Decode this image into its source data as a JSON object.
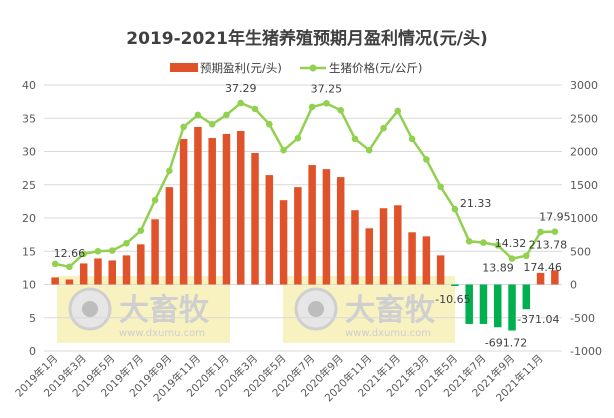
{
  "chart_data": {
    "type": "bar+line",
    "title": "2019-2021年生猪养殖预期月盈利情况(元/头)",
    "legend_position": "top",
    "grid": true,
    "x_tick_labels": [
      "2019年1月",
      "2019年3月",
      "2019年5月",
      "2019年7月",
      "2019年9月",
      "2019年11月",
      "2020年1月",
      "2020年3月",
      "2020年5月",
      "2020年7月",
      "2020年9月",
      "2020年11月",
      "2021年1月",
      "2021年3月",
      "2021年5月",
      "2021年7月",
      "2021年9月",
      "2021年11月"
    ],
    "left_axis": {
      "ylim": [
        0,
        40
      ],
      "ticks": [
        "0",
        "5",
        "10",
        "15",
        "20",
        "25",
        "30",
        "35",
        "40"
      ]
    },
    "right_axis": {
      "ylim": [
        -1000,
        3000
      ],
      "ticks": [
        "-1000",
        "-500",
        "0",
        "500",
        "1000",
        "1500",
        "2000",
        "2500",
        "3000"
      ]
    },
    "series": [
      {
        "name": "预期盈利(元/头)",
        "type": "bar",
        "axis": "right",
        "color": "#E0522A",
        "negative_color": "#00B050",
        "values": [
          106,
          75,
          317,
          392,
          362,
          438,
          604,
          981,
          1464,
          2188,
          2369,
          2203,
          2264,
          2309,
          1977,
          1645,
          1268,
          1464,
          1796,
          1735,
          1615,
          1117,
          845,
          1147,
          1192,
          785,
          724,
          438,
          -10.65,
          -593,
          -593,
          -643,
          -691.72,
          -371.04,
          174.46,
          213.78
        ]
      },
      {
        "name": "生猪价格(元/公斤)",
        "type": "line",
        "axis": "left",
        "color": "#92D050",
        "values": [
          13.1,
          12.66,
          14.6,
          15.0,
          15.1,
          16.2,
          18.1,
          22.7,
          27.1,
          33.7,
          35.5,
          34.1,
          35.5,
          37.29,
          36.4,
          34.1,
          30.2,
          32.0,
          36.7,
          37.25,
          36.2,
          31.9,
          30.2,
          33.5,
          36.1,
          31.9,
          28.8,
          24.7,
          21.33,
          16.5,
          16.3,
          15.9,
          13.89,
          14.32,
          17.9,
          17.95
        ]
      }
    ],
    "data_labels": [
      {
        "series": 1,
        "index": 1,
        "text": "12.66"
      },
      {
        "series": 1,
        "index": 13,
        "text": "37.29"
      },
      {
        "series": 1,
        "index": 19,
        "text": "37.25"
      },
      {
        "series": 1,
        "index": 28,
        "text": "21.33"
      },
      {
        "series": 1,
        "index": 32,
        "text": "13.89"
      },
      {
        "series": 1,
        "index": 33,
        "text": "14.32"
      },
      {
        "series": 1,
        "index": 35,
        "text": "17.95"
      },
      {
        "series": 0,
        "index": 28,
        "text": "-10.65"
      },
      {
        "series": 0,
        "index": 32,
        "text": "-691.72"
      },
      {
        "series": 0,
        "index": 33,
        "text": "-371.04"
      },
      {
        "series": 0,
        "index": 34,
        "text": "174.46"
      },
      {
        "series": 0,
        "index": 35,
        "text": "213.78"
      }
    ]
  },
  "watermark": {
    "brand": "大畜牧",
    "url": "www.dxumu.com"
  }
}
